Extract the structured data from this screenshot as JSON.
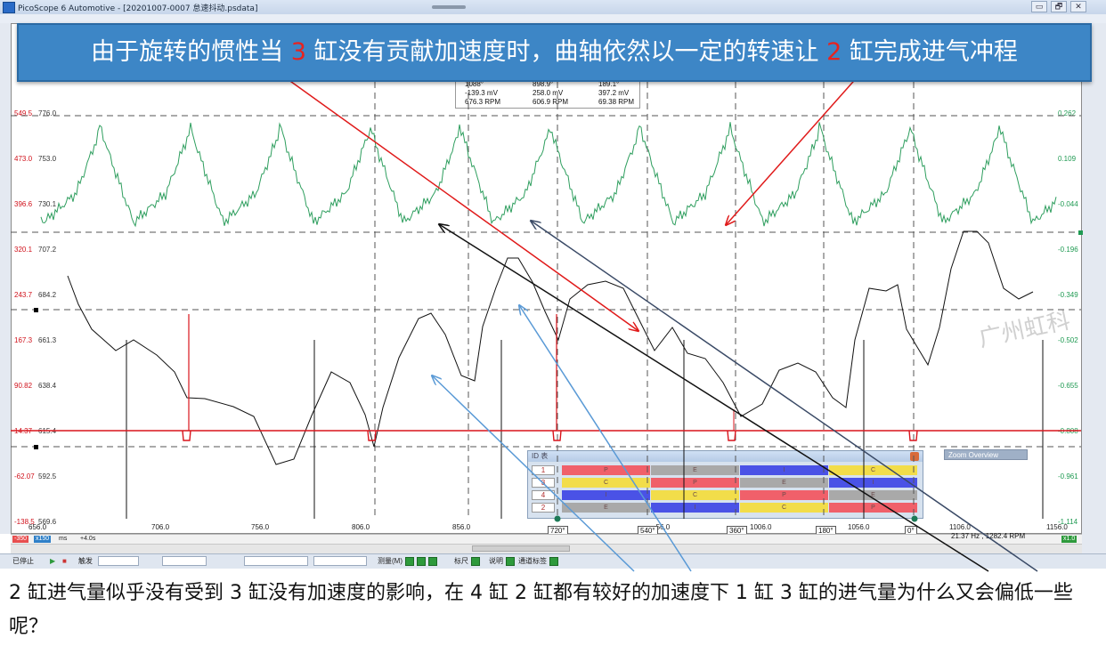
{
  "window": {
    "title": "PicoScope 6 Automotive - [20201007-0007  怠速抖动.psdata]",
    "buttons": [
      "▭",
      "🗗",
      "✕"
    ]
  },
  "banner": {
    "part1": "由于旋转的惯性当 ",
    "num1": "3",
    "part2": " 缸没有贡献加速度时，曲轴依然以一定的转速让 ",
    "num2": "2",
    "part3": " 缸完成进气冲程"
  },
  "axis_left_red": [
    "549.5",
    "473.0",
    "396.6",
    "320.1",
    "243.7",
    "167.3",
    "90.82",
    "14.37",
    "-62.07",
    "-138.5"
  ],
  "axis_left_dark": [
    "776.0",
    "753.0",
    "730.1",
    "707.2",
    "684.2",
    "661.3",
    "638.4",
    "615.4",
    "592.5",
    "569.6"
  ],
  "axis_right_green": [
    "0.262",
    "0.109",
    "-0.044",
    "-0.196",
    "-0.349",
    "-0.502",
    "-0.655",
    "-0.808",
    "-0.961",
    "-1.114"
  ],
  "x_ticks": [
    "656.0",
    "706.0",
    "756.0",
    "806.0",
    "856.0",
    "1006.0",
    "1056.0",
    "1106.0",
    "1156.0"
  ],
  "angle_markers": [
    "720°",
    "540°",
    "360°",
    "180°",
    "0°"
  ],
  "x_mid_fragment": "·56.0",
  "status": {
    "left_box1": "-350",
    "left_box2": "x150",
    "unit": "ms",
    "offset": "+4.0s",
    "right_box": "x1.0",
    "freq": "21.37 Hz , 1282.4 RPM"
  },
  "cursor_table": {
    "rows": [
      [
        "1088°",
        "898.9°",
        "189.1°"
      ],
      [
        "-139.3 mV",
        "258.0 mV",
        "397.2 mV"
      ],
      [
        "676.3 RPM",
        "606.9 RPM",
        "69.38 RPM"
      ]
    ]
  },
  "id_table": {
    "title": "ID 表",
    "rows": [
      {
        "num": "1",
        "cells": [
          "P",
          "E",
          "I",
          "C"
        ]
      },
      {
        "num": "3",
        "cells": [
          "C",
          "P",
          "E",
          "I"
        ]
      },
      {
        "num": "4",
        "cells": [
          "I",
          "C",
          "P",
          "E"
        ]
      },
      {
        "num": "2",
        "cells": [
          "E",
          "I",
          "C",
          "P"
        ]
      }
    ],
    "colors": {
      "P": "#f0606a",
      "E": "#a9a9a9",
      "I": "#4a52e6",
      "C": "#f2dd4a"
    }
  },
  "zoom_overview": "Zoom Overview",
  "toolbar": {
    "stop": "已停止",
    "trigger": "触发",
    "measure": "测量(M)",
    "ruler": "标尺",
    "notes": "说明",
    "channel_labels": "通道标签"
  },
  "watermark": "广州虹科",
  "caption": "2 缸进气量似乎没有受到 3 缸没有加速度的影响，在 4 缸 2 缸都有较好的加速度下 1 缸 3 缸的进气量为什么又会偏低一些呢？",
  "colors": {
    "green_trace": "#2e9e5e",
    "black_trace": "#111111",
    "red_trace": "#d9141c",
    "banner": "#3d86c6"
  }
}
